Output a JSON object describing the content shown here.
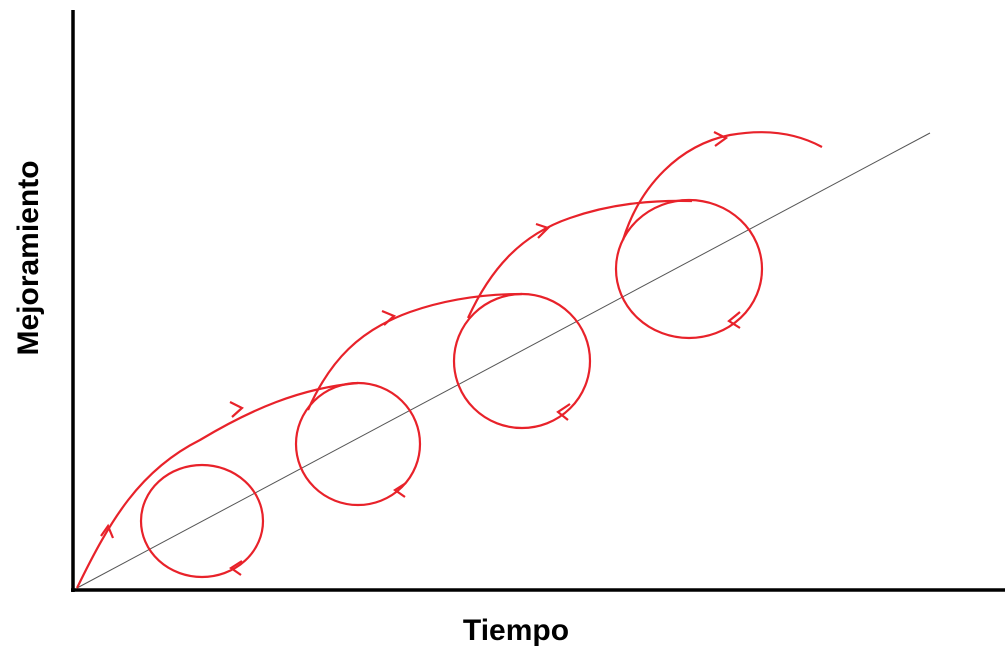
{
  "axes": {
    "y_label": "Mejoramiento",
    "x_label": "Tiempo"
  }
}
